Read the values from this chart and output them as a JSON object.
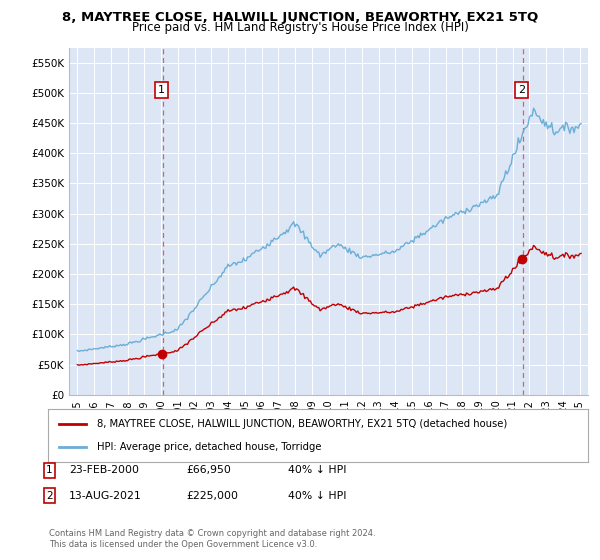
{
  "title": "8, MAYTREE CLOSE, HALWILL JUNCTION, BEAWORTHY, EX21 5TQ",
  "subtitle": "Price paid vs. HM Land Registry's House Price Index (HPI)",
  "title_fontsize": 9.5,
  "subtitle_fontsize": 8.5,
  "plot_bg_color": "#dce6f5",
  "ylim": [
    0,
    575000
  ],
  "yticks": [
    0,
    50000,
    100000,
    150000,
    200000,
    250000,
    300000,
    350000,
    400000,
    450000,
    500000,
    550000
  ],
  "ytick_labels": [
    "£0",
    "£50K",
    "£100K",
    "£150K",
    "£200K",
    "£250K",
    "£300K",
    "£350K",
    "£400K",
    "£450K",
    "£500K",
    "£550K"
  ],
  "hpi_color": "#6baed6",
  "house_color": "#c00000",
  "vline_color": "#e06060",
  "marker_color": "#c00000",
  "annotation_box_color": "#c00000",
  "sale1_date": 2000.12,
  "sale1_price": 66950,
  "sale1_label": "1",
  "sale2_date": 2021.62,
  "sale2_price": 225000,
  "sale2_label": "2",
  "legend_house": "8, MAYTREE CLOSE, HALWILL JUNCTION, BEAWORTHY, EX21 5TQ (detached house)",
  "legend_hpi": "HPI: Average price, detached house, Torridge",
  "copyright": "Contains HM Land Registry data © Crown copyright and database right 2024.\nThis data is licensed under the Open Government Licence v3.0.",
  "xmin": 1994.5,
  "xmax": 2025.5
}
